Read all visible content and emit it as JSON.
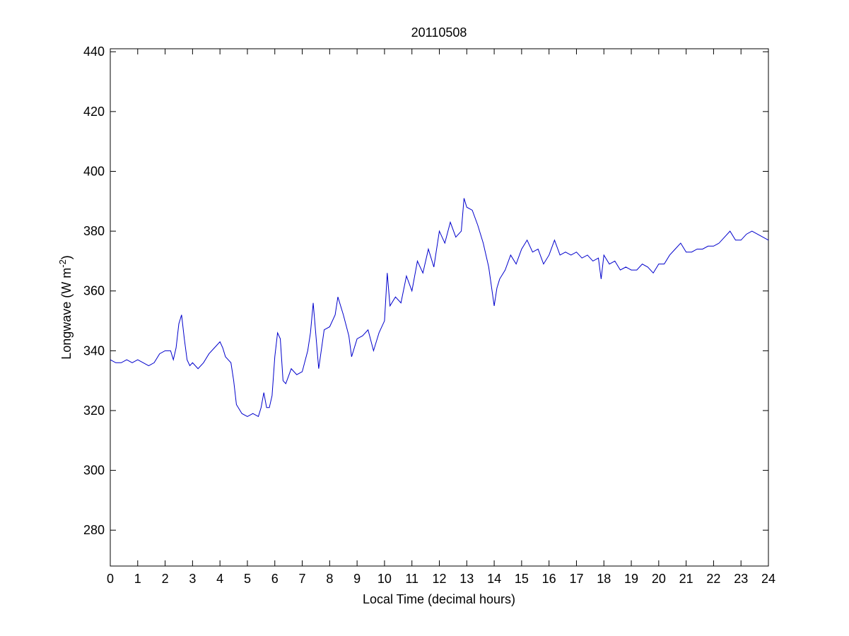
{
  "chart_data": {
    "type": "line",
    "title": "20110508",
    "xlabel": "Local Time (decimal hours)",
    "ylabel": {
      "main": "Longwave (W m",
      "superscript": "-2",
      "close": ")"
    },
    "xlim": [
      0,
      24
    ],
    "ylim": [
      268,
      441
    ],
    "xticks": [
      0,
      1,
      2,
      3,
      4,
      5,
      6,
      7,
      8,
      9,
      10,
      11,
      12,
      13,
      14,
      15,
      16,
      17,
      18,
      19,
      20,
      21,
      22,
      23,
      24
    ],
    "yticks": [
      280,
      300,
      320,
      340,
      360,
      380,
      400,
      420,
      440
    ],
    "grid": false,
    "line_color": "#0000cc",
    "series": [
      {
        "x": [
          0,
          0.2,
          0.4,
          0.6,
          0.8,
          1.0,
          1.2,
          1.4,
          1.6,
          1.8,
          2.0,
          2.2,
          2.3,
          2.4,
          2.5,
          2.6,
          2.7,
          2.8,
          2.9,
          3.0,
          3.2,
          3.4,
          3.6,
          3.8,
          4.0,
          4.1,
          4.2,
          4.3,
          4.4,
          4.5,
          4.6,
          4.8,
          5.0,
          5.2,
          5.4,
          5.5,
          5.6,
          5.7,
          5.8,
          5.9,
          6.0,
          6.1,
          6.2,
          6.3,
          6.4,
          6.6,
          6.8,
          7.0,
          7.2,
          7.3,
          7.4,
          7.5,
          7.6,
          7.8,
          8.0,
          8.2,
          8.3,
          8.5,
          8.7,
          8.8,
          9.0,
          9.2,
          9.4,
          9.6,
          9.8,
          10.0,
          10.1,
          10.2,
          10.4,
          10.6,
          10.8,
          11.0,
          11.2,
          11.4,
          11.6,
          11.8,
          12.0,
          12.2,
          12.4,
          12.6,
          12.8,
          12.9,
          13.0,
          13.2,
          13.4,
          13.6,
          13.8,
          14.0,
          14.1,
          14.2,
          14.4,
          14.6,
          14.8,
          15.0,
          15.2,
          15.4,
          15.6,
          15.8,
          16.0,
          16.2,
          16.4,
          16.6,
          16.8,
          17.0,
          17.2,
          17.4,
          17.6,
          17.8,
          17.9,
          18.0,
          18.2,
          18.4,
          18.6,
          18.8,
          19.0,
          19.2,
          19.4,
          19.6,
          19.8,
          20.0,
          20.2,
          20.4,
          20.6,
          20.8,
          21.0,
          21.2,
          21.4,
          21.6,
          21.8,
          22.0,
          22.2,
          22.4,
          22.6,
          22.8,
          23.0,
          23.2,
          23.4,
          23.6,
          23.8,
          24.0
        ],
        "y": [
          337,
          336,
          336,
          337,
          336,
          337,
          336,
          335,
          336,
          339,
          340,
          340,
          337,
          341,
          349,
          352,
          344,
          337,
          335,
          336,
          334,
          336,
          339,
          341,
          343,
          341,
          338,
          337,
          336,
          330,
          322,
          319,
          318,
          319,
          318,
          321,
          326,
          321,
          321,
          325,
          338,
          346,
          344,
          330,
          329,
          334,
          332,
          333,
          340,
          346,
          356,
          345,
          334,
          347,
          348,
          352,
          358,
          352,
          345,
          338,
          344,
          345,
          347,
          340,
          346,
          350,
          366,
          355,
          358,
          356,
          365,
          360,
          370,
          366,
          374,
          368,
          380,
          376,
          383,
          378,
          380,
          391,
          388,
          387,
          382,
          376,
          368,
          355,
          361,
          364,
          367,
          372,
          369,
          374,
          377,
          373,
          374,
          369,
          372,
          377,
          372,
          373,
          372,
          373,
          371,
          372,
          370,
          371,
          364,
          372,
          369,
          370,
          367,
          368,
          367,
          367,
          369,
          368,
          366,
          369,
          369,
          372,
          374,
          376,
          373,
          373,
          374,
          374,
          375,
          375,
          376,
          378,
          380,
          377,
          377,
          379,
          380,
          379,
          378,
          377
        ]
      }
    ]
  }
}
